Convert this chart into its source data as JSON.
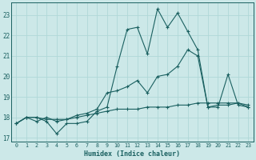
{
  "xlabel": "Humidex (Indice chaleur)",
  "background_color": "#cce8e8",
  "grid_color": "#b0d8d8",
  "line_color": "#1a6060",
  "xlim": [
    -0.5,
    23.5
  ],
  "ylim": [
    16.8,
    23.6
  ],
  "yticks": [
    17,
    18,
    19,
    20,
    21,
    22,
    23
  ],
  "xticks": [
    0,
    1,
    2,
    3,
    4,
    5,
    6,
    7,
    8,
    9,
    10,
    11,
    12,
    13,
    14,
    15,
    16,
    17,
    18,
    19,
    20,
    21,
    22,
    23
  ],
  "line1_x": [
    0,
    1,
    2,
    3,
    4,
    5,
    6,
    7,
    8,
    9,
    10,
    11,
    12,
    13,
    14,
    15,
    16,
    17,
    18,
    19,
    20,
    21,
    22,
    23
  ],
  "line1_y": [
    17.7,
    18.0,
    18.0,
    17.8,
    17.2,
    17.7,
    17.7,
    17.8,
    18.3,
    18.5,
    20.5,
    22.3,
    22.4,
    21.1,
    23.3,
    22.4,
    23.1,
    22.2,
    21.3,
    18.5,
    18.5,
    20.1,
    18.6,
    18.5
  ],
  "line2_x": [
    0,
    1,
    2,
    3,
    4,
    5,
    6,
    7,
    8,
    9,
    10,
    11,
    12,
    13,
    14,
    15,
    16,
    17,
    18,
    19,
    20,
    21,
    22,
    23
  ],
  "line2_y": [
    17.7,
    18.0,
    17.8,
    18.0,
    17.8,
    17.9,
    18.1,
    18.2,
    18.4,
    19.2,
    19.3,
    19.5,
    19.8,
    19.2,
    20.0,
    20.1,
    20.5,
    21.3,
    21.0,
    18.5,
    18.6,
    18.6,
    18.7,
    18.5
  ],
  "line3_x": [
    0,
    1,
    2,
    3,
    4,
    5,
    6,
    7,
    8,
    9,
    10,
    11,
    12,
    13,
    14,
    15,
    16,
    17,
    18,
    19,
    20,
    21,
    22,
    23
  ],
  "line3_y": [
    17.7,
    18.0,
    18.0,
    17.9,
    17.9,
    17.9,
    18.0,
    18.1,
    18.2,
    18.3,
    18.4,
    18.4,
    18.4,
    18.5,
    18.5,
    18.5,
    18.6,
    18.6,
    18.7,
    18.7,
    18.7,
    18.7,
    18.7,
    18.6
  ]
}
